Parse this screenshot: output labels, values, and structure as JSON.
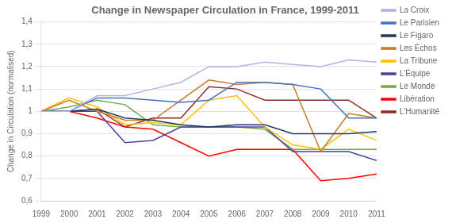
{
  "chart_data": {
    "type": "line",
    "title": "Change in Newspaper Circulation in France, 1999-2011",
    "ylabel": "Change in Circulation (normalised)",
    "x": [
      1999,
      2000,
      2001,
      2002,
      2003,
      2004,
      2005,
      2006,
      2007,
      2008,
      2009,
      2010,
      2011
    ],
    "series": [
      {
        "name": "La Croix",
        "color": "#b3b3e6",
        "values": [
          1.0,
          1.0,
          1.07,
          1.07,
          1.1,
          1.13,
          1.2,
          1.2,
          1.22,
          1.21,
          1.2,
          1.23,
          1.22
        ]
      },
      {
        "name": "Le Parisien",
        "color": "#4472c4",
        "values": [
          1.0,
          1.0,
          1.06,
          1.06,
          1.05,
          1.04,
          1.05,
          1.13,
          1.13,
          1.12,
          1.1,
          0.97,
          0.97
        ]
      },
      {
        "name": "Le Figaro",
        "color": "#1f3864",
        "values": [
          1.0,
          1.0,
          1.01,
          0.97,
          0.96,
          0.94,
          0.93,
          0.94,
          0.94,
          0.9,
          0.9,
          0.9,
          0.91
        ]
      },
      {
        "name": "Les Échos",
        "color": "#c97b2a",
        "values": [
          1.0,
          1.05,
          1.0,
          0.96,
          0.96,
          1.05,
          1.14,
          1.12,
          1.13,
          1.12,
          0.82,
          0.99,
          0.97
        ]
      },
      {
        "name": "La Tribune",
        "color": "#ffc000",
        "values": [
          1.0,
          1.06,
          1.02,
          0.94,
          0.95,
          0.94,
          1.05,
          1.07,
          0.93,
          0.85,
          0.83,
          0.92,
          0.87
        ]
      },
      {
        "name": "L’Équipe",
        "color": "#4b3fa0",
        "values": [
          1.0,
          1.0,
          1.0,
          0.86,
          0.87,
          0.93,
          0.93,
          0.93,
          0.93,
          0.82,
          0.82,
          0.82,
          0.78
        ]
      },
      {
        "name": "Le Monde",
        "color": "#70ad47",
        "values": [
          1.0,
          1.02,
          1.05,
          1.03,
          0.94,
          0.93,
          0.93,
          0.93,
          0.92,
          0.83,
          0.83,
          0.83,
          0.83
        ]
      },
      {
        "name": "Libération",
        "color": "#ff0000",
        "values": [
          1.0,
          1.0,
          0.97,
          0.93,
          0.92,
          0.86,
          0.8,
          0.83,
          0.83,
          0.83,
          0.69,
          0.7,
          0.72
        ]
      },
      {
        "name": "L’Humanité",
        "color": "#922b21",
        "values": [
          1.0,
          1.0,
          1.01,
          0.93,
          0.97,
          0.97,
          1.11,
          1.1,
          1.05,
          1.05,
          1.05,
          1.05,
          0.97
        ]
      }
    ],
    "xlim": [
      1999,
      2011
    ],
    "xticks": [
      1999,
      2000,
      2001,
      2002,
      2003,
      2004,
      2005,
      2006,
      2007,
      2008,
      2009,
      2010,
      2011
    ],
    "ylim": [
      0.6,
      1.4
    ],
    "yticks": [
      {
        "value": 0.6,
        "label": "0,6"
      },
      {
        "value": 0.7,
        "label": "0,7"
      },
      {
        "value": 0.8,
        "label": "0,8"
      },
      {
        "value": 0.9,
        "label": "0,9"
      },
      1,
      {
        "value": 1.1,
        "label": "1,1"
      },
      {
        "value": 1.2,
        "label": "1,2"
      },
      {
        "value": 1.3,
        "label": "1,3"
      },
      {
        "value": 1.4,
        "label": "1,4"
      }
    ],
    "grid": "y",
    "legend": "right"
  }
}
